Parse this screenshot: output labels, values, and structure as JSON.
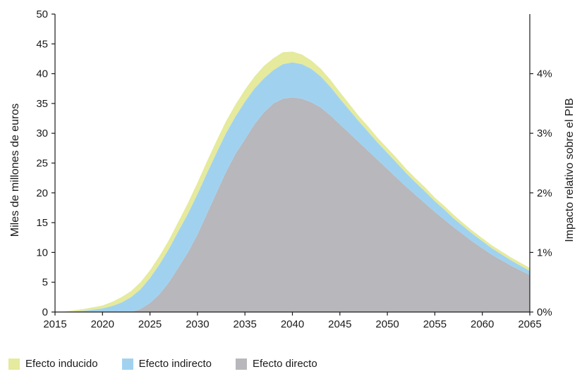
{
  "chart_data": {
    "type": "area",
    "stacked": true,
    "x": [
      2015,
      2016,
      2017,
      2018,
      2019,
      2020,
      2021,
      2022,
      2023,
      2024,
      2025,
      2026,
      2027,
      2028,
      2029,
      2030,
      2031,
      2032,
      2033,
      2034,
      2035,
      2036,
      2037,
      2038,
      2039,
      2040,
      2041,
      2042,
      2043,
      2044,
      2045,
      2046,
      2047,
      2048,
      2049,
      2050,
      2051,
      2052,
      2053,
      2054,
      2055,
      2056,
      2057,
      2058,
      2059,
      2060,
      2061,
      2062,
      2063,
      2064,
      2065
    ],
    "series": [
      {
        "name": "Efecto directo",
        "color": "#b8b7bb",
        "values": [
          0,
          0,
          0,
          0,
          0,
          0,
          0,
          0,
          0,
          0.5,
          1.5,
          3,
          5,
          7.5,
          10,
          13,
          16.5,
          20,
          23.5,
          26.5,
          29,
          31.5,
          33.5,
          35,
          35.8,
          36.0,
          35.8,
          35.2,
          34.3,
          33.0,
          31.5,
          30.0,
          28.5,
          27.0,
          25.5,
          24.0,
          22.5,
          21.0,
          19.6,
          18.2,
          16.8,
          15.5,
          14.2,
          13.0,
          11.8,
          10.7,
          9.6,
          8.7,
          7.8,
          7.0,
          6.2
        ]
      },
      {
        "name": "Efecto indirecto",
        "color": "#a0d2f0",
        "values": [
          0,
          0,
          0.1,
          0.2,
          0.4,
          0.6,
          1.0,
          1.6,
          2.5,
          3.3,
          4.2,
          5.0,
          5.6,
          6.1,
          6.5,
          6.8,
          6.8,
          6.7,
          6.5,
          6.3,
          6.3,
          6.0,
          5.7,
          5.6,
          5.8,
          5.9,
          5.8,
          5.6,
          5.2,
          4.8,
          4.3,
          3.9,
          3.5,
          3.2,
          2.9,
          2.7,
          2.5,
          2.3,
          2.1,
          2.0,
          1.8,
          1.7,
          1.5,
          1.4,
          1.3,
          1.2,
          1.1,
          1.0,
          0.9,
          0.8,
          0.7
        ]
      },
      {
        "name": "Efecto inducido",
        "color": "#e5ea9c",
        "values": [
          0,
          0.1,
          0.2,
          0.3,
          0.4,
          0.5,
          0.7,
          0.9,
          1.0,
          1.2,
          1.3,
          1.4,
          1.5,
          1.6,
          1.8,
          1.9,
          2.0,
          2.0,
          2.0,
          2.0,
          2.0,
          2.0,
          2.1,
          2.0,
          2.0,
          1.8,
          1.6,
          1.4,
          1.3,
          1.2,
          1.1,
          1.0,
          0.9,
          0.9,
          0.8,
          0.8,
          0.8,
          0.7,
          0.7,
          0.7,
          0.6,
          0.6,
          0.6,
          0.5,
          0.5,
          0.5,
          0.5,
          0.5,
          0.5,
          0.5,
          0.5
        ]
      }
    ],
    "xlim": [
      2015,
      2065
    ],
    "ylim": [
      0,
      50
    ],
    "y2lim": [
      0,
      5
    ],
    "x_ticks": [
      2015,
      2020,
      2025,
      2030,
      2035,
      2040,
      2045,
      2050,
      2055,
      2060,
      2065
    ],
    "x_tick_labels": [
      "2015",
      "2020",
      "2025",
      "2030",
      "2035",
      "2040",
      "2045",
      "2050",
      "2055",
      "2060",
      "2065"
    ],
    "y_ticks": [
      0,
      5,
      10,
      15,
      20,
      25,
      30,
      35,
      40,
      45,
      50
    ],
    "y_tick_labels": [
      "0",
      "5",
      "10",
      "15",
      "20",
      "25",
      "30",
      "35",
      "40",
      "45",
      "50"
    ],
    "y2_ticks": [
      0,
      1,
      2,
      3,
      4
    ],
    "y2_tick_labels": [
      "0%",
      "1%",
      "2%",
      "3%",
      "4%"
    ],
    "ylabel": "Miles de millones de euros",
    "y2label": "Impacto relativo sobre el PIB",
    "grid": false,
    "legend_position": "bottom-left"
  },
  "legend": {
    "items": [
      {
        "label": "Efecto inducido",
        "color": "#e5ea9c"
      },
      {
        "label": "Efecto indirecto",
        "color": "#a0d2f0"
      },
      {
        "label": "Efecto directo",
        "color": "#b8b7bb"
      }
    ]
  }
}
